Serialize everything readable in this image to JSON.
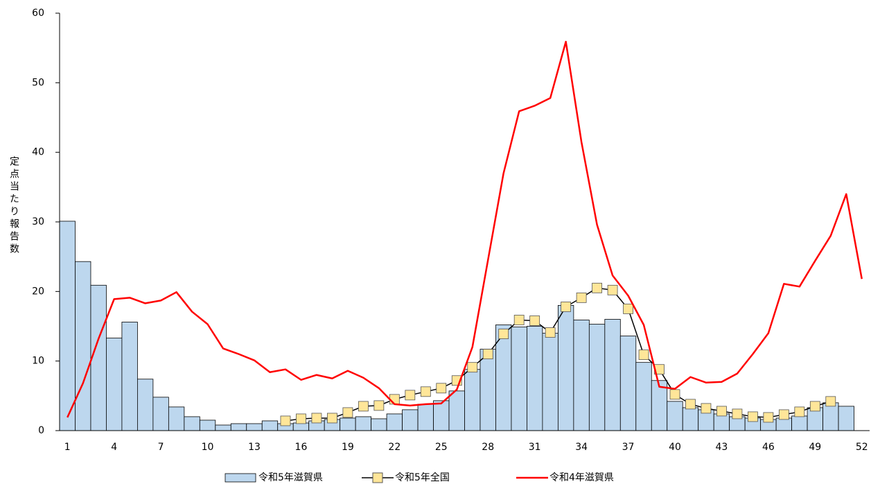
{
  "chart_data": {
    "type": "combo",
    "y_label": "定点当たり報告数",
    "categories": [
      "1",
      null,
      null,
      "4",
      null,
      null,
      "7",
      null,
      null,
      "10",
      null,
      null,
      "13",
      null,
      null,
      "16",
      null,
      null,
      "19",
      null,
      null,
      "22",
      null,
      null,
      "25",
      null,
      null,
      "28",
      null,
      null,
      "31",
      null,
      null,
      "34",
      null,
      null,
      "37",
      null,
      null,
      "40",
      null,
      null,
      "43",
      null,
      null,
      "46",
      null,
      null,
      "49",
      null,
      null,
      "52"
    ],
    "ylim": [
      0,
      60
    ],
    "yticks": [
      0,
      10,
      20,
      30,
      40,
      50,
      60
    ],
    "series": [
      {
        "name": "令和5年滋賀県",
        "type": "bar",
        "color": "#bdd7ee",
        "values": [
          30.1,
          24.3,
          20.9,
          13.3,
          15.6,
          7.4,
          4.8,
          3.4,
          2.0,
          1.5,
          0.8,
          1.0,
          1.0,
          1.4,
          1.0,
          1.1,
          1.4,
          1.6,
          1.8,
          2.0,
          1.7,
          2.4,
          3.0,
          3.8,
          4.3,
          5.7,
          8.8,
          11.7,
          15.2,
          14.9,
          15.0,
          14.0,
          18.0,
          15.9,
          15.3,
          16.0,
          13.6,
          9.8,
          7.2,
          4.2,
          3.3,
          3.0,
          2.4,
          2.0,
          1.8,
          1.6,
          1.8,
          2.1,
          3.3,
          4.0,
          3.5,
          null
        ]
      },
      {
        "name": "令和5年全国",
        "type": "line",
        "color": "#000000",
        "marker_color": "#ffe699",
        "values": [
          null,
          null,
          null,
          null,
          null,
          null,
          null,
          null,
          null,
          null,
          null,
          null,
          null,
          null,
          1.4,
          1.7,
          1.8,
          1.8,
          2.6,
          3.5,
          3.6,
          4.5,
          5.1,
          5.6,
          6.1,
          7.2,
          9.1,
          11.0,
          13.9,
          15.9,
          15.8,
          14.1,
          17.8,
          19.1,
          20.5,
          20.2,
          17.5,
          10.9,
          8.8,
          5.2,
          3.8,
          3.2,
          2.8,
          2.4,
          2.0,
          1.9,
          2.3,
          2.7,
          3.5,
          4.2,
          null,
          null
        ]
      },
      {
        "name": "令和4年滋賀県",
        "type": "line",
        "color": "#ff0000",
        "values": [
          1.9,
          6.8,
          13.2,
          18.9,
          19.1,
          18.3,
          18.7,
          19.9,
          17.1,
          15.3,
          11.8,
          11.0,
          10.1,
          8.4,
          8.8,
          7.3,
          8.0,
          7.5,
          8.6,
          7.6,
          6.1,
          3.8,
          3.6,
          3.8,
          3.9,
          5.9,
          12.0,
          24.5,
          37.0,
          45.9,
          46.7,
          47.8,
          55.9,
          41.5,
          29.6,
          22.3,
          19.4,
          15.2,
          6.3,
          6.0,
          7.7,
          6.9,
          7.0,
          8.2,
          11.0,
          14.0,
          21.1,
          20.7,
          24.4,
          28.0,
          34.0,
          21.8
        ]
      }
    ]
  }
}
